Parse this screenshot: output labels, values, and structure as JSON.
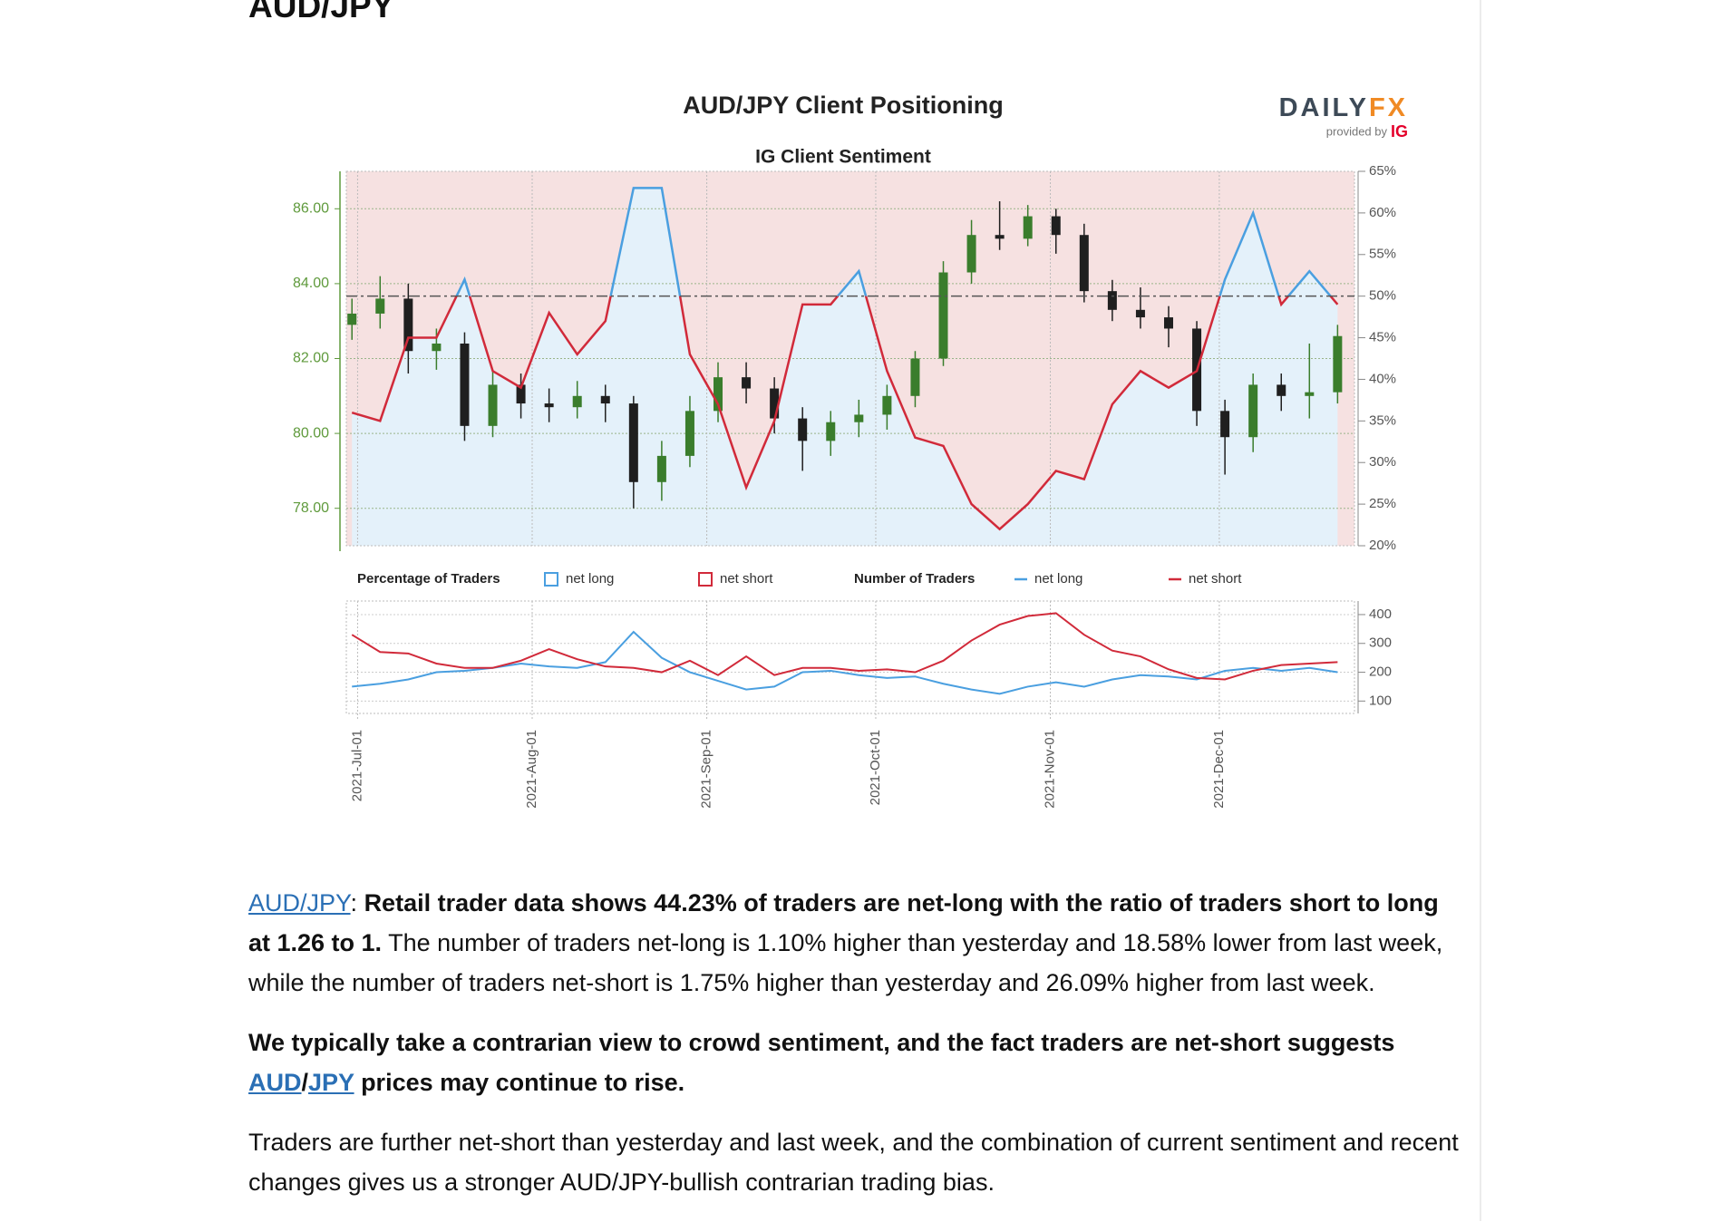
{
  "heading": "AUD/JPY",
  "chart_data": {
    "type": "sentiment",
    "title": "AUD/JPY Client Positioning",
    "subtitle": "IG Client Sentiment",
    "logo": {
      "name1": "DAILY",
      "name2": "FX",
      "tagline": "provided by",
      "brand": "IG"
    },
    "x": [
      "2021-06-30",
      "2021-07-05",
      "2021-07-10",
      "2021-07-15",
      "2021-07-20",
      "2021-07-25",
      "2021-07-30",
      "2021-08-04",
      "2021-08-09",
      "2021-08-14",
      "2021-08-19",
      "2021-08-24",
      "2021-08-29",
      "2021-09-03",
      "2021-09-08",
      "2021-09-13",
      "2021-09-18",
      "2021-09-23",
      "2021-09-28",
      "2021-10-03",
      "2021-10-08",
      "2021-10-13",
      "2021-10-18",
      "2021-10-23",
      "2021-10-28",
      "2021-11-02",
      "2021-11-07",
      "2021-11-12",
      "2021-11-17",
      "2021-11-22",
      "2021-11-27",
      "2021-12-02",
      "2021-12-07",
      "2021-12-12",
      "2021-12-17",
      "2021-12-22"
    ],
    "xlim": [
      "2021-06-29",
      "2021-12-25"
    ],
    "xticks": [
      {
        "value": "2021-07-01",
        "label": "2021-Jul-01"
      },
      {
        "value": "2021-08-01",
        "label": "2021-Aug-01"
      },
      {
        "value": "2021-09-01",
        "label": "2021-Sep-01"
      },
      {
        "value": "2021-10-01",
        "label": "2021-Oct-01"
      },
      {
        "value": "2021-11-01",
        "label": "2021-Nov-01"
      },
      {
        "value": "2021-12-01",
        "label": "2021-Dec-01"
      }
    ],
    "price": {
      "ylim": [
        77,
        87
      ],
      "yticks": [
        {
          "value": 78,
          "label": "78.00"
        },
        {
          "value": 80,
          "label": "80.00"
        },
        {
          "value": 82,
          "label": "82.00"
        },
        {
          "value": 84,
          "label": "84.00"
        },
        {
          "value": 86,
          "label": "86.00"
        }
      ],
      "axis_color": "#5f9a3c",
      "up_color": "#3a7d2c",
      "down_color": "#1f1f1f",
      "open": [
        82.9,
        83.2,
        83.6,
        82.2,
        82.4,
        80.2,
        81.3,
        80.8,
        80.7,
        81.0,
        80.8,
        78.7,
        79.4,
        80.6,
        81.5,
        81.2,
        80.4,
        79.8,
        80.3,
        80.5,
        81.0,
        82.0,
        84.3,
        85.3,
        85.2,
        85.8,
        85.3,
        83.8,
        83.3,
        83.1,
        82.8,
        80.6,
        79.9,
        81.3,
        81.0,
        81.1
      ],
      "high": [
        83.6,
        84.2,
        84.0,
        82.8,
        82.7,
        81.7,
        81.6,
        81.2,
        81.4,
        81.3,
        81.0,
        79.8,
        81.0,
        81.9,
        81.9,
        81.5,
        80.7,
        80.6,
        80.9,
        81.3,
        82.2,
        84.6,
        85.7,
        86.2,
        86.1,
        86.0,
        85.6,
        84.1,
        83.9,
        83.4,
        83.0,
        80.9,
        81.6,
        81.6,
        82.4,
        82.9
      ],
      "low": [
        82.5,
        82.8,
        81.6,
        81.7,
        79.8,
        79.9,
        80.4,
        80.3,
        80.4,
        80.3,
        78.0,
        78.2,
        79.1,
        80.3,
        80.8,
        80.0,
        79.0,
        79.4,
        79.9,
        80.1,
        80.7,
        81.8,
        84.0,
        84.9,
        85.0,
        84.8,
        83.5,
        83.0,
        82.8,
        82.3,
        80.2,
        78.9,
        79.5,
        80.6,
        80.4,
        80.8
      ],
      "close": [
        83.2,
        83.6,
        82.2,
        82.4,
        80.2,
        81.3,
        80.8,
        80.7,
        81.0,
        80.8,
        78.7,
        79.4,
        80.6,
        81.5,
        81.2,
        80.4,
        79.8,
        80.3,
        80.5,
        81.0,
        82.0,
        84.3,
        85.3,
        85.2,
        85.8,
        85.3,
        83.8,
        83.3,
        83.1,
        82.8,
        80.6,
        79.9,
        81.3,
        81.0,
        81.1,
        82.6
      ]
    },
    "percentages": {
      "title": "Percentage of Traders",
      "ylim": [
        20,
        65
      ],
      "yticks": [
        {
          "value": 20,
          "label": "20%"
        },
        {
          "value": 25,
          "label": "25%"
        },
        {
          "value": 30,
          "label": "30%"
        },
        {
          "value": 35,
          "label": "35%"
        },
        {
          "value": 40,
          "label": "40%"
        },
        {
          "value": 45,
          "label": "45%"
        },
        {
          "value": 50,
          "label": "50%"
        },
        {
          "value": 55,
          "label": "55%"
        },
        {
          "value": 60,
          "label": "60%"
        },
        {
          "value": 65,
          "label": "65%"
        }
      ],
      "reference": 50,
      "series": [
        {
          "name": "net long",
          "color": "#4a9fe0",
          "fill": "#e4f1fa",
          "values": [
            36,
            35,
            45,
            45,
            52,
            41,
            39,
            48,
            43,
            47,
            63,
            63,
            43,
            37,
            27,
            35,
            49,
            49,
            53,
            41,
            33,
            32,
            25,
            22,
            25,
            29,
            28,
            37,
            41,
            39,
            41,
            52,
            60,
            49,
            53,
            49
          ]
        },
        {
          "name": "net short",
          "color": "#d12a3a",
          "fill": "#f6e1e1"
        }
      ]
    },
    "counts": {
      "title": "Number of Traders",
      "ylim": [
        57,
        447
      ],
      "yticks": [
        100,
        200,
        300,
        400
      ],
      "series": [
        {
          "name": "net long",
          "color": "#4a9fe0",
          "values": [
            150,
            160,
            175,
            200,
            205,
            215,
            230,
            220,
            215,
            235,
            340,
            250,
            200,
            170,
            140,
            150,
            200,
            205,
            190,
            180,
            185,
            160,
            140,
            125,
            150,
            165,
            150,
            175,
            190,
            185,
            175,
            205,
            215,
            205,
            215,
            200
          ]
        },
        {
          "name": "net short",
          "color": "#d12a3a",
          "values": [
            330,
            270,
            265,
            230,
            215,
            215,
            240,
            280,
            245,
            220,
            215,
            200,
            240,
            190,
            255,
            190,
            215,
            215,
            205,
            210,
            200,
            240,
            310,
            365,
            395,
            405,
            330,
            275,
            255,
            210,
            180,
            175,
            205,
            225,
            230,
            235
          ]
        }
      ]
    }
  },
  "paragraphs": [
    {
      "runs": [
        {
          "text": "AUD/JPY",
          "style": "link"
        },
        {
          "text": ": ",
          "style": "plain"
        },
        {
          "text": "Retail trader data shows 44.23% of traders are net-long with the ratio of traders short to long at 1.26 to 1.",
          "style": "bold"
        },
        {
          "text": " The number of traders net-long is 1.10% higher than yesterday and 18.58% lower from last week, while the number of traders net-short is 1.75% higher than yesterday and 26.09% higher from last week.",
          "style": "plain"
        }
      ]
    },
    {
      "runs": [
        {
          "text": "We typically take a contrarian view to crowd sentiment, and the fact traders are net-short suggests ",
          "style": "bold"
        },
        {
          "text": "AUD",
          "style": "bold-link"
        },
        {
          "text": "/",
          "style": "bold"
        },
        {
          "text": "JPY",
          "style": "bold-link"
        },
        {
          "text": " prices may continue to rise.",
          "style": "bold"
        }
      ]
    },
    {
      "runs": [
        {
          "text": "Traders are further net-short than yesterday and last week, and the combination of current sentiment and recent changes gives us a stronger AUD/JPY-bullish contrarian trading bias.",
          "style": "plain"
        }
      ]
    }
  ]
}
